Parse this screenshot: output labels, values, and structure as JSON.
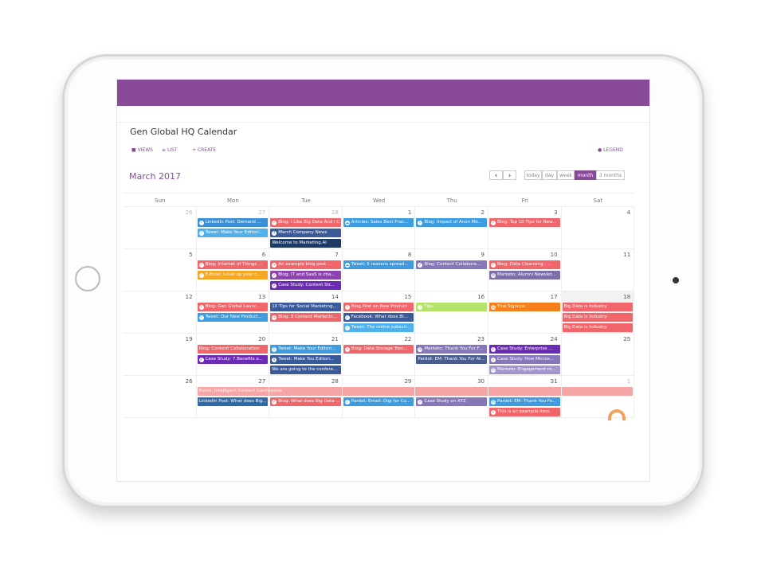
{
  "header": {
    "title": "Gen Global HQ Calendar",
    "toolbar": [
      "VIEWS",
      "LIST",
      "CREATE"
    ],
    "legend": "LEGEND"
  },
  "calendar": {
    "month_title": "March 2017",
    "nav": [
      "‹",
      "›"
    ],
    "views": [
      "today",
      "day",
      "week",
      "month",
      "3 months"
    ],
    "active_view": 3,
    "weekdays": [
      "Sun",
      "Mon",
      "Tue",
      "Wed",
      "Thu",
      "Fri",
      "Sat"
    ],
    "weeks": [
      {
        "days": [
          {
            "number": 26,
            "muted": true,
            "events": []
          },
          {
            "number": 27,
            "muted": true,
            "events": [
              {
                "text": "LinkedIn Post: Demand ...",
                "color": "#3a8fd6",
                "icon": "check"
              },
              {
                "text": "Tweet: Make Your Editori...",
                "color": "#4fb0ea",
                "icon": "check"
              }
            ]
          },
          {
            "number": 28,
            "muted": true,
            "events": [
              {
                "text": "Blog: I Like Big Data And I C...",
                "color": "#f1666a",
                "icon": "check"
              },
              {
                "text": "March Company News",
                "color": "#3b5a9a",
                "icon": "facebook"
              },
              {
                "text": "Welcome to Marketing.AI",
                "color": "#1d3a66",
                "icon": "none"
              }
            ]
          },
          {
            "number": 1,
            "events": [
              {
                "text": "Articles: Sales Best Prac...",
                "color": "#3d9be0",
                "icon": "cloud"
              }
            ]
          },
          {
            "number": 2,
            "events": [
              {
                "text": "Blog: Impact of Anon Mo...",
                "color": "#3d9be0",
                "icon": "check"
              }
            ]
          },
          {
            "number": 3,
            "events": [
              {
                "text": "Blog: Top 10 Tips for New...",
                "color": "#f1666a",
                "icon": "check"
              }
            ]
          },
          {
            "number": 4,
            "events": []
          }
        ]
      },
      {
        "days": [
          {
            "number": 5,
            "events": []
          },
          {
            "number": 6,
            "events": [
              {
                "text": "Blog: Internet of Things ...",
                "color": "#f1666a",
                "icon": "check"
              },
              {
                "text": "E-Book: Level up your c...",
                "color": "#f5a623",
                "icon": "check"
              }
            ]
          },
          {
            "number": 7,
            "events": [
              {
                "text": "An example blog post ...",
                "color": "#f1666a",
                "icon": "dot"
              },
              {
                "text": "Blog: IT and SaaS is cha...",
                "color": "#8e44ad",
                "icon": "check"
              },
              {
                "text": "Case Study: Content Str...",
                "color": "#6c2bb5",
                "icon": "check"
              }
            ]
          },
          {
            "number": 8,
            "events": [
              {
                "text": "Tweet: 5 reasons spread...",
                "color": "#3d9be0",
                "icon": "cloud"
              }
            ]
          },
          {
            "number": 9,
            "events": [
              {
                "text": "Blog: Content Collabora...",
                "color": "#8577b8",
                "icon": "check"
              }
            ]
          },
          {
            "number": 10,
            "events": [
              {
                "text": "Blog: Data Cleansing - ...",
                "color": "#f1666a",
                "icon": "check"
              },
              {
                "text": "Marketo: Alumni Newslet...",
                "color": "#7f6fa8",
                "icon": "mail"
              }
            ]
          },
          {
            "number": 11,
            "events": []
          }
        ]
      },
      {
        "days": [
          {
            "number": 12,
            "events": []
          },
          {
            "number": 13,
            "events": [
              {
                "text": "Blog: Gen Global Launc...",
                "color": "#f1666a",
                "icon": "check"
              },
              {
                "text": "Tweet: Our New Product...",
                "color": "#3d9be0",
                "icon": "check"
              }
            ]
          },
          {
            "number": 14,
            "events": [
              {
                "text": "10 Tips for Social Marketing...",
                "color": "#3b5a9a",
                "icon": "none"
              },
              {
                "text": "Blog: 8 Content Marketin...",
                "color": "#f1666a",
                "icon": "dot"
              }
            ]
          },
          {
            "number": 15,
            "events": [
              {
                "text": "Blog Post on New Product",
                "color": "#f1666a",
                "icon": "dot"
              },
              {
                "text": "Facebook: What does Bi...",
                "color": "#3b5a9a",
                "icon": "check"
              },
              {
                "text": "Tweet: The online subscri...",
                "color": "#4fb0ea",
                "icon": "check"
              }
            ]
          },
          {
            "number": 16,
            "events": [
              {
                "text": "Tips",
                "color": "#b5e36a",
                "icon": "check"
              }
            ]
          },
          {
            "number": 17,
            "events": [
              {
                "text": "Trial Signups",
                "color": "#f7801e",
                "icon": "doc"
              }
            ]
          },
          {
            "number": 18,
            "highlight": true,
            "events": [
              {
                "text": "Big Data is Industry",
                "color": "#f1666a",
                "icon": "none"
              },
              {
                "text": "Big Data is Industry",
                "color": "#f1666a",
                "icon": "none"
              },
              {
                "text": "Big Data is Industry",
                "color": "#f1666a",
                "icon": "none"
              }
            ]
          }
        ]
      },
      {
        "days": [
          {
            "number": 19,
            "events": []
          },
          {
            "number": 20,
            "events": [
              {
                "text": "Blog: Content Collaboration",
                "color": "#f1666a",
                "icon": "none"
              },
              {
                "text": "Case Study: 7 Benefits o...",
                "color": "#6c2bb5",
                "icon": "check"
              }
            ]
          },
          {
            "number": 21,
            "events": [
              {
                "text": "Tweet: Make Your Editori...",
                "color": "#3d9be0",
                "icon": "twitter"
              },
              {
                "text": "Tweet: Make You Editori...",
                "color": "#3b5a9a",
                "icon": "twitter"
              },
              {
                "text": "We are going to the confere...",
                "color": "#3b5a9a",
                "icon": "none"
              }
            ]
          },
          {
            "number": 22,
            "events": [
              {
                "text": "Blog: Data Storage Tren...",
                "color": "#f1666a",
                "icon": "dot"
              }
            ]
          },
          {
            "number": 23,
            "events": [
              {
                "text": "Marketo: Thank You For F...",
                "color": "#8577b8",
                "icon": "mail"
              },
              {
                "text": "Pardot: EM: Thank You For At...",
                "color": "#4a5d8f",
                "icon": "none"
              }
            ]
          },
          {
            "number": 24,
            "events": [
              {
                "text": "Case Study: Enterprise ...",
                "color": "#6c2bb5",
                "icon": "check"
              },
              {
                "text": "Case Study: How Micros...",
                "color": "#8577b8",
                "icon": "check"
              },
              {
                "text": "Marketo: Engagement ro...",
                "color": "#a394d0",
                "icon": "mail"
              }
            ]
          },
          {
            "number": 25,
            "events": []
          }
        ]
      },
      {
        "banner": "Event: Intelligent Content Conference",
        "days": [
          {
            "number": 26,
            "events": []
          },
          {
            "number": 27,
            "events": [
              {
                "text": "LinkedIn Post: What does Big...",
                "color": "#2f6aa8",
                "icon": "none"
              }
            ]
          },
          {
            "number": 28,
            "events": [
              {
                "text": "Blog: What does Big Data ...",
                "color": "#f1666a",
                "icon": "check"
              }
            ]
          },
          {
            "number": 29,
            "events": [
              {
                "text": "Pardot: Email: Digi for Co...",
                "color": "#3d9be0",
                "icon": "check"
              }
            ]
          },
          {
            "number": 30,
            "events": [
              {
                "text": "Case Study on XYZ",
                "color": "#8577b8",
                "icon": "check"
              }
            ]
          },
          {
            "number": 31,
            "events": [
              {
                "text": "Pardot: EM: Thank You Fo...",
                "color": "#3d9be0",
                "icon": "mail"
              },
              {
                "text": "This is an example item",
                "color": "#f1666a",
                "icon": "dot"
              }
            ]
          },
          {
            "number": 1,
            "muted": true,
            "events": []
          }
        ]
      }
    ]
  }
}
